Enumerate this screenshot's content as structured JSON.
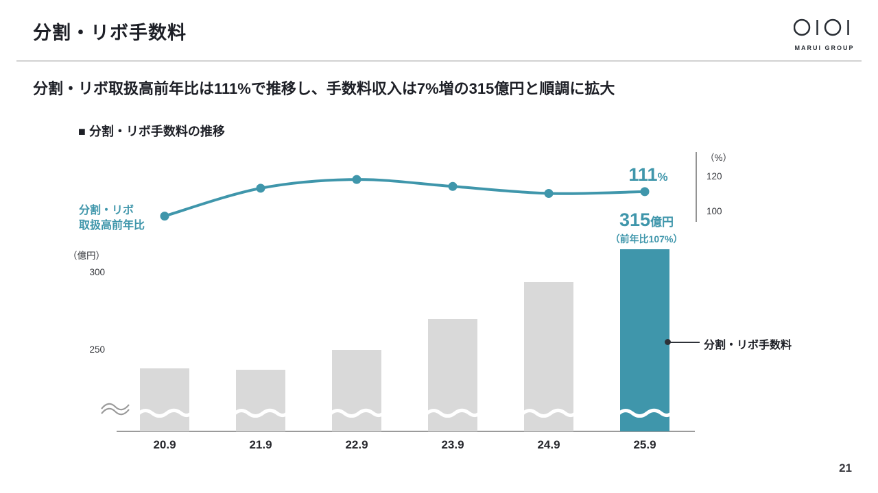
{
  "slide": {
    "title": "分割・リボ手数料",
    "message": "分割・リボ取扱高前年比は111%で推移し、手数料収入は7%増の315億円と順調に拡大",
    "page_number": "21"
  },
  "logo": {
    "brand": "MARUI GROUP"
  },
  "chart": {
    "section_title": "■ 分割・リボ手数料の推移",
    "left_axis_unit": "（億円）",
    "right_axis_unit": "（%）",
    "left_ticks": [
      "300",
      "250"
    ],
    "right_ticks": [
      "120",
      "100"
    ],
    "line_series_label_line1": "分割・リボ",
    "line_series_label_line2": "取扱高前年比",
    "bar_series_label": "分割・リボ手数料",
    "annotation_rate_value": "111",
    "annotation_rate_unit": "%",
    "annotation_amount_value": "315",
    "annotation_amount_unit": "億円",
    "annotation_amount_note": "（前年比107%）"
  },
  "chart_data": {
    "type": "bar+line",
    "categories": [
      "20.9",
      "21.9",
      "22.9",
      "23.9",
      "24.9",
      "25.9"
    ],
    "series": [
      {
        "name": "分割・リボ手数料",
        "type": "bar",
        "axis": "left",
        "unit": "億円",
        "values": [
          238,
          237,
          250,
          270,
          294,
          315
        ]
      },
      {
        "name": "分割・リボ取扱高前年比",
        "type": "line",
        "axis": "right",
        "unit": "%",
        "values": [
          97,
          113,
          118,
          114,
          110,
          111
        ]
      }
    ],
    "left_axis": {
      "unit": "億円",
      "ticks": [
        250,
        300
      ],
      "broken_axis": true
    },
    "right_axis": {
      "unit": "%",
      "ticks": [
        100,
        120
      ]
    },
    "highlight_index": 5,
    "annotations": {
      "last_rate": "111%",
      "last_amount": "315億円",
      "last_amount_note": "前年比107%"
    },
    "colors": {
      "bar_default": "#d9d9d9",
      "bar_highlight": "#3f96ab",
      "line": "#3f96ab"
    },
    "legend_position": "inline-labels",
    "grid": false
  }
}
